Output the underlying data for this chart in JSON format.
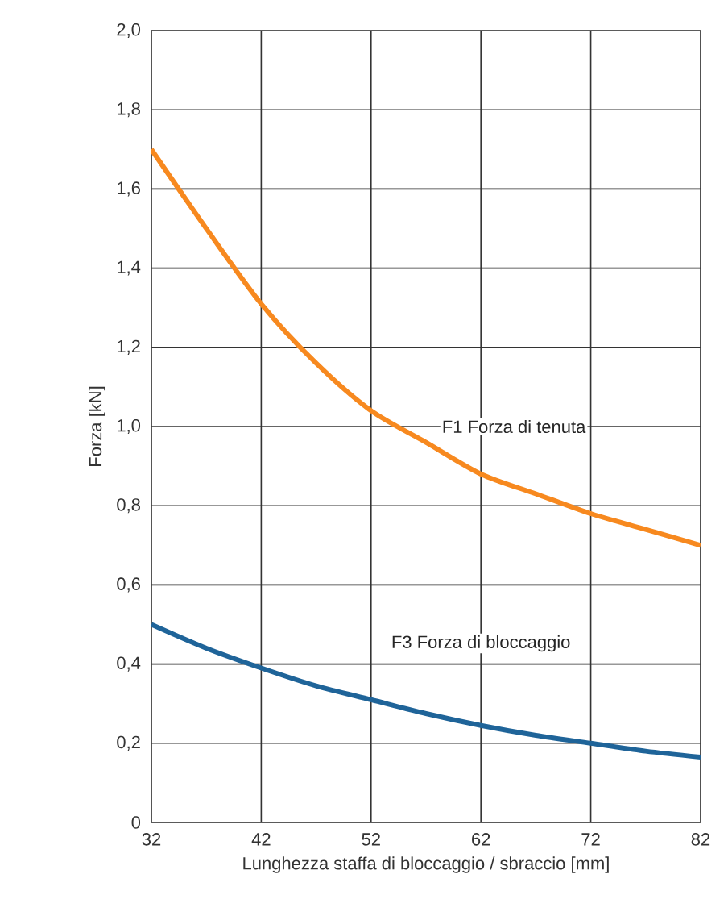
{
  "chart_data": {
    "type": "line",
    "xlabel": "Lunghezza staffa di bloccaggio / sbraccio [mm]",
    "ylabel": "Forza [kN]",
    "xlim": [
      32,
      82
    ],
    "xticks": [
      32,
      42,
      52,
      62,
      72,
      82
    ],
    "ylim": [
      0,
      2
    ],
    "yticks": [
      {
        "value": 0,
        "label": "0"
      },
      {
        "value": 0.2,
        "label": "0,2"
      },
      {
        "value": 0.4,
        "label": "0,4"
      },
      {
        "value": 0.6,
        "label": "0,6"
      },
      {
        "value": 0.8,
        "label": "0,8"
      },
      {
        "value": 1.0,
        "label": "1,0"
      },
      {
        "value": 1.2,
        "label": "1,2"
      },
      {
        "value": 1.4,
        "label": "1,4"
      },
      {
        "value": 1.6,
        "label": "1,6"
      },
      {
        "value": 1.8,
        "label": "1,8"
      },
      {
        "value": 2.0,
        "label": "2,0"
      }
    ],
    "grid": true,
    "marker": "none",
    "line_style": "solid",
    "x": [
      32,
      37,
      42,
      47,
      52,
      57,
      62,
      67,
      72,
      77,
      82
    ],
    "series": [
      {
        "color": "#f7891f",
        "values": [
          1.7,
          1.5,
          1.31,
          1.16,
          1.04,
          0.96,
          0.88,
          0.83,
          0.78,
          0.74,
          0.7
        ]
      },
      {
        "color": "#1f6499",
        "values": [
          0.5,
          0.44,
          0.39,
          0.345,
          0.31,
          0.275,
          0.245,
          0.22,
          0.2,
          0.18,
          0.165
        ]
      }
    ],
    "annotations": [
      "F1 Forza di tenuta",
      "F3 Forza di bloccaggio"
    ]
  }
}
